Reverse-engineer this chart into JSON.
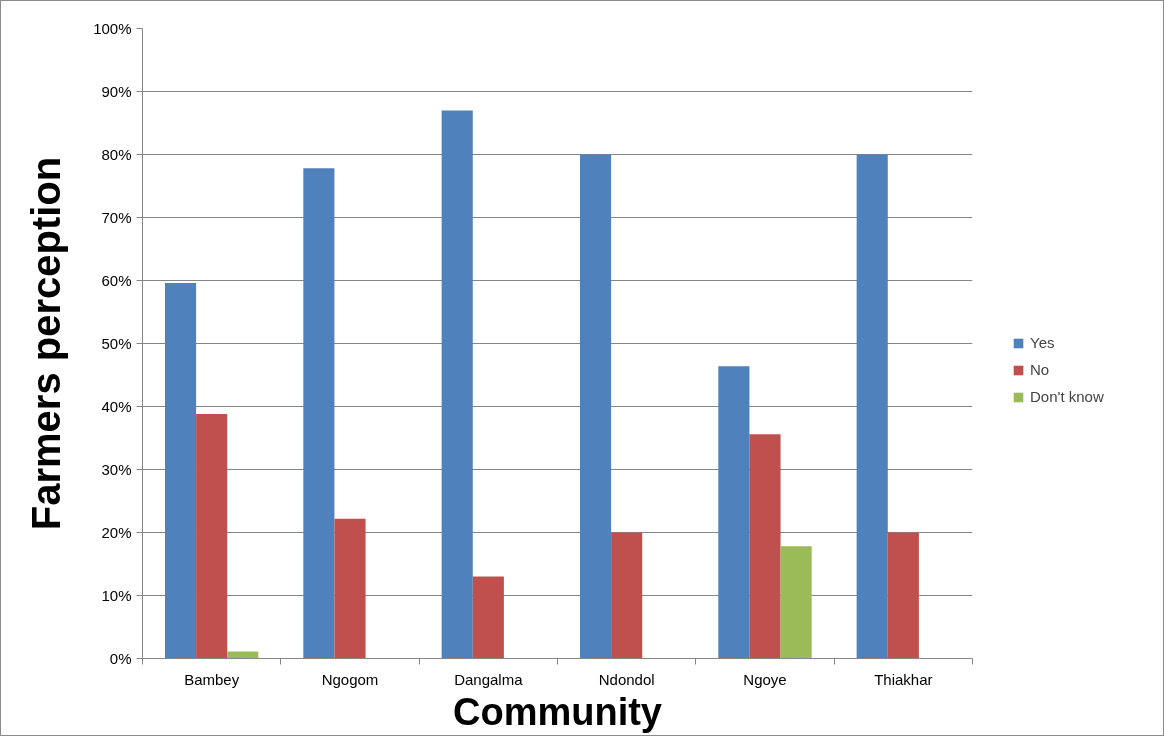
{
  "chart_data": {
    "type": "bar",
    "xlabel": "Community",
    "ylabel": "Farmers perception",
    "categories": [
      "Bambey",
      "Ngogom",
      "Dangalma",
      "Ndondol",
      "Ngoye",
      "Thiakhar"
    ],
    "series": [
      {
        "name": "Yes",
        "color": "#4f81bd",
        "values": [
          59.6,
          77.8,
          87.0,
          80,
          46.4,
          80
        ]
      },
      {
        "name": "No",
        "color": "#c0504d",
        "values": [
          38.8,
          22.2,
          13.0,
          20,
          35.6,
          20
        ]
      },
      {
        "name": "Don't know",
        "color": "#9bbb59",
        "values": [
          1.1,
          0,
          0,
          0,
          17.8,
          0
        ]
      }
    ],
    "ylim": [
      0,
      100
    ],
    "yticks": [
      {
        "value": 0,
        "label": "0%"
      },
      {
        "value": 10,
        "label": "10%"
      },
      {
        "value": 20,
        "label": "20%"
      },
      {
        "value": 30,
        "label": "30%"
      },
      {
        "value": 40,
        "label": "40%"
      },
      {
        "value": 50,
        "label": "50%"
      },
      {
        "value": 60,
        "label": "60%"
      },
      {
        "value": 70,
        "label": "70%"
      },
      {
        "value": 80,
        "label": "80%"
      },
      {
        "value": 90,
        "label": "90%"
      },
      {
        "value": 100,
        "label": "100%"
      }
    ],
    "grid": "y",
    "legend": "right"
  }
}
